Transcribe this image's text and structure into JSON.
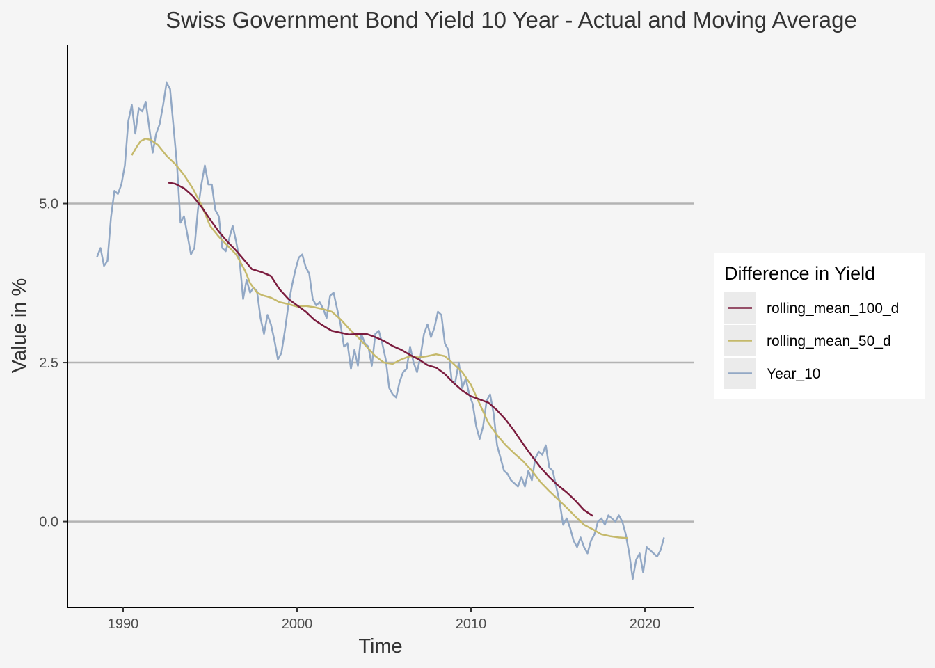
{
  "chart_data": {
    "type": "line",
    "title": "Swiss Government Bond Yield 10 Year - Actual and Moving Average",
    "xlabel": "Time",
    "ylabel": "Value in %",
    "xlim": [
      1986.8,
      2022.8
    ],
    "ylim": [
      -1.35,
      7.5
    ],
    "x_ticks": [
      1990,
      2000,
      2010,
      2020
    ],
    "x_tick_labels": [
      "1990",
      "2000",
      "2010",
      "2020"
    ],
    "y_ticks": [
      0,
      2.5,
      5
    ],
    "y_tick_labels": [
      "0.0",
      "2.5",
      "5.0"
    ],
    "grid": "horizontal major",
    "legend": {
      "title": "Difference in Yield",
      "position": "right"
    },
    "series": [
      {
        "name": "rolling_mean_100_d",
        "color": "#7b1c3e",
        "x": [
          1992.6,
          1993.0,
          1993.5,
          1994.0,
          1994.5,
          1995.0,
          1995.5,
          1996.0,
          1996.5,
          1997.0,
          1997.4,
          1998.0,
          1998.5,
          1999.0,
          1999.5,
          2000.0,
          2000.5,
          2001.0,
          2001.5,
          2002.0,
          2002.5,
          2003.0,
          2003.5,
          2004.0,
          2004.5,
          2005.0,
          2005.5,
          2006.0,
          2006.5,
          2007.0,
          2007.5,
          2008.0,
          2008.5,
          2009.0,
          2009.5,
          2010.0,
          2010.5,
          2011.0,
          2011.5,
          2012.0,
          2012.5,
          2013.0,
          2013.5,
          2014.0,
          2014.5,
          2015.0,
          2015.5,
          2016.0,
          2016.5,
          2017.0
        ],
        "values": [
          5.33,
          5.31,
          5.24,
          5.12,
          4.95,
          4.75,
          4.56,
          4.4,
          4.26,
          4.1,
          3.97,
          3.92,
          3.86,
          3.65,
          3.5,
          3.4,
          3.3,
          3.17,
          3.08,
          3.0,
          2.97,
          2.94,
          2.95,
          2.95,
          2.9,
          2.84,
          2.76,
          2.7,
          2.62,
          2.55,
          2.46,
          2.42,
          2.32,
          2.18,
          2.06,
          1.97,
          1.92,
          1.87,
          1.75,
          1.6,
          1.42,
          1.22,
          1.03,
          0.85,
          0.7,
          0.57,
          0.46,
          0.33,
          0.18,
          0.09
        ]
      },
      {
        "name": "rolling_mean_50_d",
        "color": "#c5b96b",
        "x": [
          1990.5,
          1990.8,
          1991.0,
          1991.3,
          1991.6,
          1992.0,
          1992.5,
          1993.0,
          1993.5,
          1994.0,
          1994.5,
          1995.0,
          1995.5,
          1996.0,
          1996.5,
          1997.0,
          1997.3,
          1997.7,
          1998.0,
          1998.5,
          1999.0,
          1999.5,
          2000.0,
          2000.5,
          2001.0,
          2001.5,
          2002.0,
          2002.5,
          2003.0,
          2003.5,
          2004.0,
          2004.5,
          2005.0,
          2005.5,
          2006.0,
          2006.5,
          2007.0,
          2007.5,
          2008.0,
          2008.5,
          2009.0,
          2009.5,
          2010.0,
          2010.5,
          2011.0,
          2011.5,
          2012.0,
          2012.5,
          2013.0,
          2013.5,
          2014.0,
          2014.5,
          2015.0,
          2015.5,
          2016.0,
          2016.5,
          2017.0,
          2017.5,
          2018.0,
          2018.5,
          2019.0
        ],
        "values": [
          5.76,
          5.9,
          5.98,
          6.02,
          6.0,
          5.92,
          5.75,
          5.62,
          5.45,
          5.24,
          4.98,
          4.65,
          4.48,
          4.34,
          4.2,
          3.95,
          3.75,
          3.6,
          3.56,
          3.52,
          3.45,
          3.42,
          3.38,
          3.39,
          3.37,
          3.34,
          3.3,
          3.18,
          3.03,
          2.9,
          2.75,
          2.6,
          2.5,
          2.48,
          2.55,
          2.6,
          2.58,
          2.6,
          2.63,
          2.6,
          2.48,
          2.35,
          2.15,
          1.85,
          1.55,
          1.36,
          1.2,
          1.07,
          0.95,
          0.8,
          0.62,
          0.48,
          0.35,
          0.22,
          0.08,
          -0.05,
          -0.12,
          -0.2,
          -0.23,
          -0.25,
          -0.26
        ]
      },
      {
        "name": "Year_10",
        "color": "#92a8c5",
        "x": [
          1988.5,
          1988.7,
          1988.9,
          1989.1,
          1989.3,
          1989.5,
          1989.7,
          1989.9,
          1990.1,
          1990.3,
          1990.5,
          1990.7,
          1990.9,
          1991.1,
          1991.3,
          1991.5,
          1991.7,
          1991.9,
          1992.1,
          1992.3,
          1992.5,
          1992.7,
          1992.9,
          1993.1,
          1993.3,
          1993.5,
          1993.7,
          1993.9,
          1994.1,
          1994.3,
          1994.5,
          1994.7,
          1994.9,
          1995.1,
          1995.3,
          1995.5,
          1995.7,
          1995.9,
          1996.1,
          1996.3,
          1996.5,
          1996.7,
          1996.9,
          1997.1,
          1997.3,
          1997.5,
          1997.7,
          1997.9,
          1998.1,
          1998.3,
          1998.5,
          1998.7,
          1998.9,
          1999.1,
          1999.3,
          1999.5,
          1999.7,
          1999.9,
          2000.1,
          2000.3,
          2000.5,
          2000.7,
          2000.9,
          2001.1,
          2001.3,
          2001.5,
          2001.7,
          2001.9,
          2002.1,
          2002.3,
          2002.5,
          2002.7,
          2002.9,
          2003.1,
          2003.3,
          2003.5,
          2003.7,
          2003.9,
          2004.1,
          2004.3,
          2004.5,
          2004.7,
          2004.9,
          2005.1,
          2005.3,
          2005.5,
          2005.7,
          2005.9,
          2006.1,
          2006.3,
          2006.5,
          2006.7,
          2006.9,
          2007.1,
          2007.3,
          2007.5,
          2007.7,
          2007.9,
          2008.1,
          2008.3,
          2008.5,
          2008.7,
          2008.9,
          2009.1,
          2009.3,
          2009.5,
          2009.7,
          2009.9,
          2010.1,
          2010.3,
          2010.5,
          2010.7,
          2010.9,
          2011.1,
          2011.3,
          2011.5,
          2011.7,
          2011.9,
          2012.1,
          2012.3,
          2012.5,
          2012.7,
          2012.9,
          2013.1,
          2013.3,
          2013.5,
          2013.7,
          2013.9,
          2014.1,
          2014.3,
          2014.5,
          2014.7,
          2014.9,
          2015.1,
          2015.3,
          2015.5,
          2015.7,
          2015.9,
          2016.1,
          2016.3,
          2016.5,
          2016.7,
          2016.9,
          2017.1,
          2017.3,
          2017.5,
          2017.7,
          2017.9,
          2018.1,
          2018.3,
          2018.5,
          2018.7,
          2018.9,
          2019.1,
          2019.3,
          2019.5,
          2019.7,
          2019.9,
          2020.1,
          2020.3,
          2020.5,
          2020.7,
          2020.9,
          2021.1
        ],
        "values": [
          4.16,
          4.3,
          4.02,
          4.1,
          4.78,
          5.2,
          5.15,
          5.3,
          5.6,
          6.3,
          6.55,
          6.1,
          6.5,
          6.45,
          6.6,
          6.2,
          5.8,
          6.1,
          6.25,
          6.55,
          6.9,
          6.8,
          6.2,
          5.6,
          4.7,
          4.8,
          4.5,
          4.2,
          4.3,
          4.9,
          5.3,
          5.6,
          5.3,
          5.3,
          4.9,
          4.8,
          4.3,
          4.25,
          4.45,
          4.65,
          4.4,
          4.1,
          3.5,
          3.8,
          3.6,
          3.68,
          3.62,
          3.2,
          2.95,
          3.25,
          3.1,
          2.85,
          2.55,
          2.65,
          3.0,
          3.4,
          3.7,
          3.95,
          4.15,
          4.2,
          4.0,
          3.9,
          3.5,
          3.4,
          3.45,
          3.35,
          3.2,
          3.55,
          3.6,
          3.35,
          3.1,
          2.75,
          2.8,
          2.4,
          2.7,
          2.45,
          2.95,
          2.8,
          2.75,
          2.45,
          2.95,
          3.0,
          2.8,
          2.55,
          2.1,
          2.0,
          1.95,
          2.2,
          2.35,
          2.4,
          2.75,
          2.5,
          2.35,
          2.6,
          2.95,
          3.1,
          2.9,
          3.05,
          3.3,
          3.25,
          2.8,
          2.7,
          2.2,
          2.2,
          2.5,
          2.1,
          2.25,
          2.0,
          1.85,
          1.5,
          1.3,
          1.5,
          1.9,
          2.0,
          1.7,
          1.2,
          1.0,
          0.8,
          0.75,
          0.65,
          0.6,
          0.55,
          0.7,
          0.55,
          0.8,
          0.65,
          1.0,
          1.1,
          1.05,
          1.2,
          0.85,
          0.8,
          0.55,
          0.3,
          -0.05,
          0.05,
          -0.1,
          -0.3,
          -0.4,
          -0.25,
          -0.4,
          -0.5,
          -0.3,
          -0.2,
          0.0,
          0.05,
          -0.05,
          0.1,
          0.05,
          0.0,
          0.1,
          0.0,
          -0.2,
          -0.5,
          -0.9,
          -0.6,
          -0.5,
          -0.8,
          -0.4,
          -0.45,
          -0.5,
          -0.55,
          -0.45,
          -0.25
        ]
      }
    ]
  }
}
